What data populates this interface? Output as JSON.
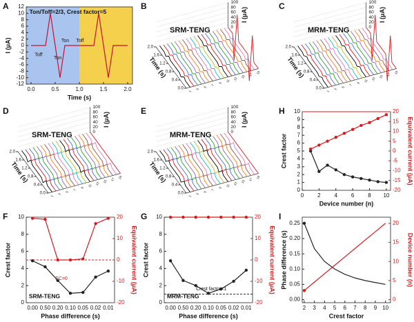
{
  "chart_data": [
    {
      "panel": "A",
      "type": "line",
      "annotations": [
        "Ton/Toff=2/3, Crest factor=5",
        "Toff",
        "Ton",
        "Ton",
        "Toff"
      ],
      "xlabel": "Time (s)",
      "ylabel": "I (μA)",
      "x": [
        0,
        0.3,
        0.4,
        0.5,
        0.6,
        0.7,
        1,
        1.3,
        1.4,
        1.5,
        1.6,
        1.7,
        2
      ],
      "series": [
        {
          "color": "#c8102e",
          "values": [
            0,
            0,
            10,
            0,
            -10,
            0,
            0,
            0,
            10,
            0,
            -10,
            0,
            0
          ]
        }
      ],
      "xlim": [
        -0.1,
        2.1
      ],
      "ylim": [
        -12,
        12
      ],
      "xticks": [
        {
          "value": 0,
          "label": "0.0"
        },
        {
          "value": 0.5,
          "label": "0.5"
        },
        {
          "value": 1,
          "label": "1.0"
        },
        {
          "value": 1.5,
          "label": "1.5"
        },
        {
          "value": 2,
          "label": "2.0"
        }
      ],
      "yticks": [
        -12,
        -10,
        -8,
        -6,
        -4,
        -2,
        0,
        2,
        4,
        6,
        8,
        10,
        12
      ],
      "regions": {
        "split": 1,
        "colors": [
          "#a9c4ee",
          "#f5d04c"
        ]
      }
    },
    {
      "panel": "B",
      "type": "waterfall",
      "title": "SRM-TENG",
      "zlabel": "I (μA)",
      "ylabel": "Time (s)",
      "zticks": [
        0,
        20,
        40,
        60,
        80,
        100
      ],
      "zlim": [
        0,
        100
      ],
      "ylim": [
        0,
        2
      ],
      "yticks": [
        {
          "value": 0,
          "label": "0.0"
        },
        {
          "value": 0.4,
          "label": "0.4"
        },
        {
          "value": 0.8,
          "label": "0.8"
        },
        {
          "value": 1.2,
          "label": "1.2"
        },
        {
          "value": 1.6,
          "label": "1.6"
        },
        {
          "value": 2,
          "label": "2.0"
        }
      ],
      "xticks": [
        1,
        3,
        5,
        7,
        9,
        11,
        13,
        15,
        17,
        19
      ],
      "peaks": [
        8,
        8,
        8,
        8,
        8,
        8,
        8,
        8,
        8,
        8,
        8,
        8,
        8,
        8,
        8,
        8,
        8,
        8,
        100
      ],
      "colors": [
        "#000000",
        "#e41a1c",
        "#4a6fe3",
        "#2ca02c",
        "#9467bd",
        "#ff7f0e",
        "#8c564b",
        "#e377c2",
        "#17becf",
        "#bcbd22"
      ],
      "highlight_color": "#d7191c"
    },
    {
      "panel": "C",
      "type": "waterfall",
      "title": "MRM-TENG",
      "zlabel": "I (μA)",
      "ylabel": "Time (s)",
      "zticks": [
        0,
        20,
        40,
        60,
        80,
        100
      ],
      "zlim": [
        0,
        100
      ],
      "ylim": [
        0,
        2
      ],
      "yticks": [
        {
          "value": 0,
          "label": "0.0"
        },
        {
          "value": 0.4,
          "label": "0.4"
        },
        {
          "value": 0.8,
          "label": "0.8"
        },
        {
          "value": 1.2,
          "label": "1.2"
        },
        {
          "value": 1.6,
          "label": "1.6"
        },
        {
          "value": 2,
          "label": "2.0"
        }
      ],
      "xticks": [
        1,
        3,
        5,
        7,
        9,
        11,
        13,
        15,
        17,
        19
      ],
      "peaks": [
        6,
        8,
        7,
        9,
        6,
        8,
        7,
        9,
        6,
        8,
        7,
        9,
        6,
        8,
        7,
        9,
        6,
        8,
        100
      ],
      "colors": [
        "#000000",
        "#e41a1c",
        "#4a6fe3",
        "#2ca02c",
        "#9467bd",
        "#ff7f0e",
        "#8c564b",
        "#e377c2",
        "#17becf",
        "#bcbd22"
      ],
      "highlight_color": "#d7191c"
    },
    {
      "panel": "D",
      "type": "waterfall",
      "title": "SRM-TENG",
      "zlabel": "I (μA)",
      "ylabel": "Time (s)",
      "zticks": [
        0,
        20,
        40,
        60,
        80,
        100
      ],
      "zlim": [
        0,
        100
      ],
      "ylim": [
        0,
        2
      ],
      "yticks": [
        {
          "value": 0,
          "label": "0.0"
        },
        {
          "value": 0.4,
          "label": "0.4"
        },
        {
          "value": 0.8,
          "label": "0.8"
        },
        {
          "value": 1.2,
          "label": "1.2"
        },
        {
          "value": 1.6,
          "label": "1.6"
        },
        {
          "value": 2,
          "label": "2.0"
        }
      ],
      "xticks": [
        1,
        3,
        5,
        7,
        9,
        11,
        13,
        15,
        17,
        19
      ],
      "peaks": [
        12,
        12,
        12,
        12,
        12,
        12,
        12,
        12,
        12,
        12,
        12,
        12,
        12,
        12,
        12,
        12,
        12,
        12,
        0
      ],
      "colors": [
        "#000000",
        "#e41a1c",
        "#4a6fe3",
        "#2ca02c",
        "#9467bd",
        "#ff7f0e",
        "#8c564b",
        "#e377c2",
        "#17becf",
        "#bcbd22"
      ],
      "highlight_color": "#d7191c"
    },
    {
      "panel": "E",
      "type": "waterfall",
      "title": "MRM-TENG",
      "zlabel": "I (μA)",
      "ylabel": "Time (s)",
      "zticks": [
        0,
        20,
        40,
        60,
        80,
        100
      ],
      "zlim": [
        0,
        100
      ],
      "ylim": [
        0,
        2
      ],
      "yticks": [
        {
          "value": 0,
          "label": "0.0"
        },
        {
          "value": 0.4,
          "label": "0.4"
        },
        {
          "value": 0.8,
          "label": "0.8"
        },
        {
          "value": 1.2,
          "label": "1.2"
        },
        {
          "value": 1.6,
          "label": "1.6"
        },
        {
          "value": 2,
          "label": "2.0"
        }
      ],
      "xticks": [
        1,
        3,
        5,
        7,
        9,
        11,
        13,
        15,
        17,
        19
      ],
      "peaks": [
        10,
        12,
        11,
        13,
        10,
        12,
        11,
        13,
        10,
        12,
        11,
        13,
        10,
        12,
        11,
        13,
        10,
        12,
        0
      ],
      "colors": [
        "#000000",
        "#e41a1c",
        "#4a6fe3",
        "#2ca02c",
        "#9467bd",
        "#ff7f0e",
        "#8c564b",
        "#e377c2",
        "#17becf",
        "#bcbd22"
      ],
      "highlight_color": "#d7191c"
    },
    {
      "panel": "H",
      "type": "dual",
      "xlabel": "Device number (n)",
      "ylabel": "Crest factor",
      "y2label": "Equivalent current (μA)",
      "x": [
        1,
        2,
        3,
        4,
        5,
        6,
        7,
        8,
        9,
        10
      ],
      "xlim": [
        0,
        10.5
      ],
      "xticks": [
        0,
        2,
        4,
        6,
        8,
        10
      ],
      "ylim": [
        0,
        10
      ],
      "yticks": [
        0,
        1,
        2,
        3,
        4,
        5,
        6,
        7,
        8,
        9,
        10
      ],
      "y2lim": [
        -20,
        20
      ],
      "y2ticks": [
        -20,
        -15,
        -10,
        -5,
        0,
        5,
        10,
        15,
        20
      ],
      "series": [
        {
          "color": "#222222",
          "values": [
            5,
            2.4,
            3.2,
            2.6,
            2.0,
            1.7,
            1.5,
            1.3,
            1.1,
            1.0
          ]
        },
        {
          "color": "#d7191c",
          "axis": "y2",
          "values": [
            1,
            3,
            5,
            7,
            9,
            11,
            13,
            14.5,
            16.5,
            18.5
          ]
        }
      ],
      "ref_line": {
        "axis": "y2",
        "value": 20,
        "color": "#d7191c",
        "dashed": false
      }
    },
    {
      "panel": "F",
      "type": "dual",
      "xlabel": "Phase difference (s)",
      "ylabel": "Crest factor",
      "y2label": "Equivalent current (μA)",
      "categories": [
        "0.00",
        "0.50",
        "0.20",
        "0.10",
        "0.05",
        "0.02",
        "0.01"
      ],
      "ylim": [
        0,
        10
      ],
      "yticks": [
        0,
        2,
        4,
        6,
        8,
        10
      ],
      "y2lim": [
        -20,
        20
      ],
      "y2ticks": [
        -20,
        -10,
        0,
        10,
        20
      ],
      "series": [
        {
          "color": "#222222",
          "values": [
            4.9,
            4.2,
            2.6,
            1.1,
            1.2,
            3.0,
            3.7
          ]
        },
        {
          "color": "#d7191c",
          "axis": "y2",
          "values": [
            19.5,
            19,
            0,
            0,
            0.5,
            17,
            19.5
          ]
        }
      ],
      "ref_line": {
        "axis": "y2",
        "value": 0,
        "color": "#d7191c",
        "dashed": true
      },
      "annotations": [
        "SRM-TENG",
        "EC=0"
      ]
    },
    {
      "panel": "G",
      "type": "dual",
      "xlabel": "Phase difference (s)",
      "ylabel": "Crest factor",
      "y2label": "Equivalent current (μA)",
      "categories": [
        "0.00",
        "0.50",
        "0.20",
        "0.10",
        "0.05",
        "0.02",
        "0.01"
      ],
      "ylim": [
        0,
        10
      ],
      "yticks": [
        0,
        2,
        4,
        6,
        8,
        10
      ],
      "y2lim": [
        -20,
        20
      ],
      "y2ticks": [
        -20,
        -10,
        0,
        10,
        20
      ],
      "series": [
        {
          "color": "#222222",
          "values": [
            4.9,
            2.6,
            2.0,
            1.1,
            1.6,
            2.5,
            3.8
          ]
        },
        {
          "color": "#d7191c",
          "axis": "y2",
          "values": [
            20,
            20,
            20,
            20,
            20,
            20,
            20
          ]
        }
      ],
      "ref_line": {
        "axis": "y",
        "value": 1,
        "color": "#222222",
        "dashed": true
      },
      "annotations": [
        "MRM-TENG",
        "Crest factor=1"
      ]
    },
    {
      "panel": "I",
      "type": "dual",
      "xlabel": "Crest factor",
      "ylabel": "Phase difference (s)",
      "y2label": "Device number (n)",
      "x": [
        2,
        3,
        4,
        5,
        6,
        7,
        8,
        9,
        10
      ],
      "xlim": [
        1.8,
        10.5
      ],
      "xticks": [
        2,
        3,
        4,
        5,
        6,
        7,
        8,
        9,
        10
      ],
      "ylim": [
        -0.01,
        0.27
      ],
      "yticks": [
        {
          "value": 0,
          "label": "0.00"
        },
        {
          "value": 0.05,
          "label": "0.05"
        },
        {
          "value": 0.1,
          "label": "0.10"
        },
        {
          "value": 0.15,
          "label": "0.15"
        },
        {
          "value": 0.2,
          "label": "0.20"
        },
        {
          "value": 0.25,
          "label": "0.25"
        }
      ],
      "y2lim": [
        -0.8,
        21.6
      ],
      "y2ticks": [
        0,
        5,
        10,
        15,
        20
      ],
      "series": [
        {
          "color": "#222222",
          "values": [
            0.25,
            0.167,
            0.125,
            0.1,
            0.083,
            0.071,
            0.0625,
            0.056,
            0.05
          ]
        },
        {
          "color": "#d7191c",
          "axis": "y2",
          "values": [
            2.4,
            4.6,
            6.8,
            9,
            11.2,
            13.4,
            15.6,
            17.8,
            20
          ]
        }
      ],
      "markers": "first"
    }
  ]
}
